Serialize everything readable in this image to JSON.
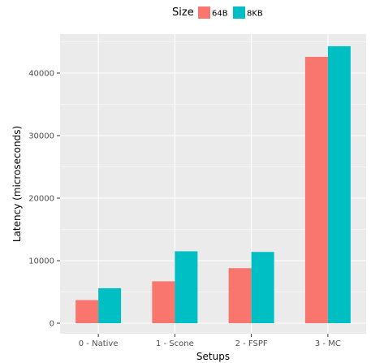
{
  "chart_data": {
    "type": "bar",
    "title": "",
    "xlabel": "Setups",
    "ylabel": "Latency (microseconds)",
    "categories": [
      "0 - Native",
      "1 - Scone",
      "2 - FSPF",
      "3 - MC"
    ],
    "series": [
      {
        "name": "64B",
        "color": "#F8766D",
        "values": [
          3700,
          6700,
          8800,
          42600
        ]
      },
      {
        "name": "8KB",
        "color": "#00BFC4",
        "values": [
          5600,
          11500,
          11400,
          44300
        ]
      }
    ],
    "ylim": [
      -1800,
      46000
    ],
    "yticks": [
      0,
      10000,
      20000,
      30000,
      40000
    ],
    "grid": true,
    "legend": {
      "title": "Size",
      "position": "top"
    },
    "panel_background": "#EBEBEB"
  }
}
